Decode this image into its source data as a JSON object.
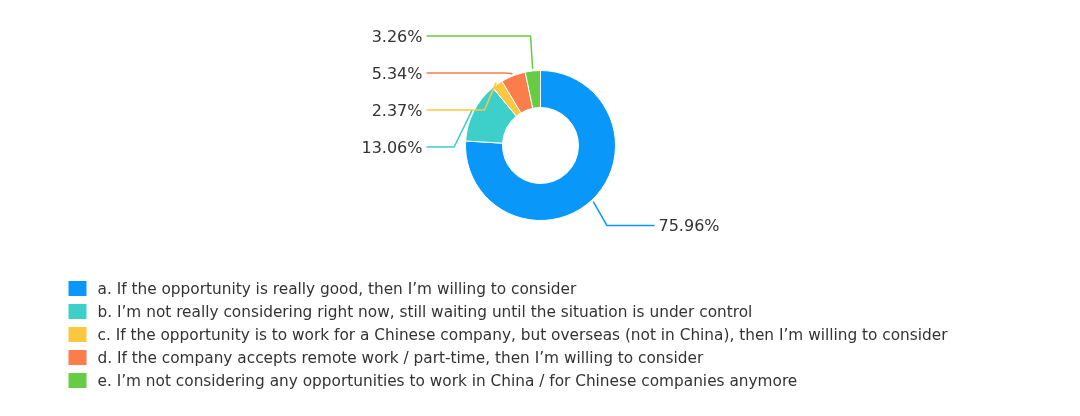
{
  "chart_data": {
    "type": "donut",
    "categories": [
      "a. If the opportunity is really good, then I’m willing to consider",
      "b. I’m not really considering right now, still waiting until the situation is under control",
      "c. If the opportunity is to work for a Chinese company, but overseas (not in China), then I’m willing to consider",
      "d. If the company accepts remote work / part-time, then I’m willing to consider",
      "e. I’m not considering any opportunities to work in China / for Chinese companies anymore"
    ],
    "values": [
      75.96,
      13.06,
      2.37,
      5.34,
      3.26
    ],
    "value_labels": [
      "75.96%",
      "13.06%",
      "2.37%",
      "5.34%",
      "3.26%"
    ],
    "colors": [
      "#0a97fa",
      "#3dcfc9",
      "#fbc73e",
      "#fb7d4c",
      "#66cc44"
    ],
    "legend": "bottom left"
  }
}
